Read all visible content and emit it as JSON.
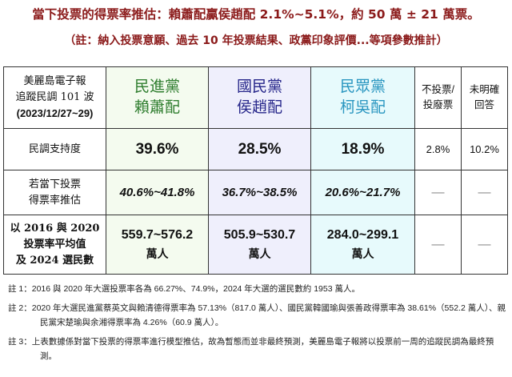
{
  "title": "當下投票的得票率推估：賴蕭配贏侯趙配 2.1%~5.1%，約 50 萬 ± 21 萬票。",
  "subtitle": "（註：納入投票意願、過去 10 年投票結果、政黨印象評價...等項參數推計）",
  "table": {
    "corner": [
      "美麗島電子報",
      "追蹤民調 101 波",
      "(2023/12/27~29)"
    ],
    "columns": [
      {
        "party": "民進黨",
        "ticket": "賴蕭配",
        "color": "#2e7d2e"
      },
      {
        "party": "國民黨",
        "ticket": "侯趙配",
        "color": "#26268a"
      },
      {
        "party": "民眾黨",
        "ticket": "柯吳配",
        "color": "#2a96c0"
      }
    ],
    "other_cols": [
      [
        "不投票/",
        "投廢票"
      ],
      [
        "未明確",
        "回答"
      ]
    ],
    "rows": [
      {
        "label": [
          "民調支持度"
        ],
        "values": [
          "39.6%",
          "28.5%",
          "18.9%"
        ],
        "other": [
          "2.8%",
          "10.2%"
        ]
      },
      {
        "label": [
          "若當下投票",
          "得票率推估"
        ],
        "values": [
          "40.6%~41.8%",
          "36.7%~38.5%",
          "20.6%~21.7%"
        ],
        "other": [
          "—",
          "—"
        ]
      },
      {
        "label": [
          "以 2016 與 2020",
          "投票率平均值",
          "及 2024 選民數"
        ],
        "values": [
          "559.7~576.2",
          "505.9~530.7",
          "284.0~299.1"
        ],
        "unit": "萬人",
        "other": [
          "—",
          "—"
        ]
      }
    ]
  },
  "notes": [
    "註 1：2016 與 2020 年大選投票率各為 66.27%、74.9%，2024 年大選的選民數約 1953 萬人。",
    "註 2：2020 年大選民進黨蔡英文與賴清德得票率為 57.13%（817.0 萬人）、國民黨韓國瑜與張善政得票率為 38.61%（552.2 萬人）、親民黨宋楚瑜與余湘得票率為 4.26%（60.9 萬人）。",
    "註 3：上表數據係對當下投票的得票率進行模型推估，故為暫態而並非最終預測，美麗島電子報將以投票前一周的追蹤民調為最終預測。"
  ]
}
